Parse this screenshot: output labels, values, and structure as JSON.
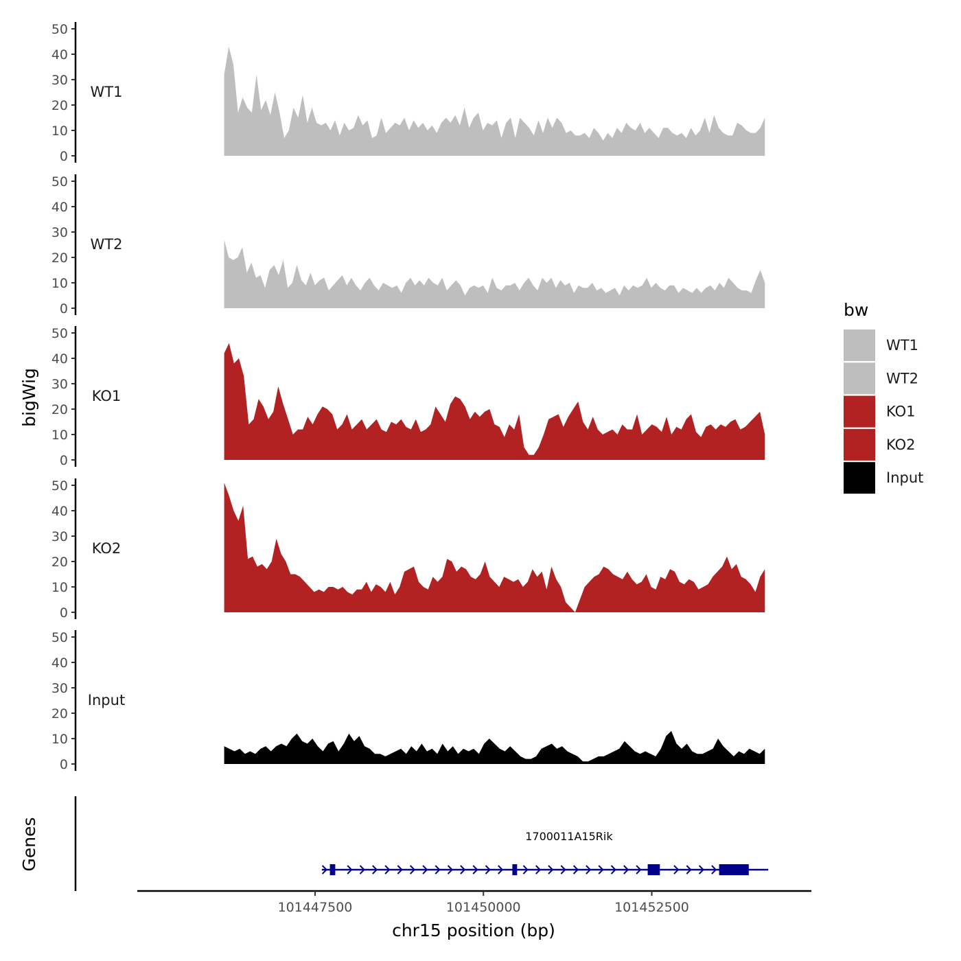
{
  "chart_data": {
    "type": "area",
    "y_axis_title": "bigWig",
    "x_axis_title": "chr15 position (bp)",
    "x_range": [
      101444860,
      101454870
    ],
    "x_ticks": [
      101447500,
      101450000,
      101452500
    ],
    "x_tick_labels": [
      "101447500",
      "101450000",
      "101452500"
    ],
    "y_range": [
      0,
      52
    ],
    "y_ticks": [
      0,
      10,
      20,
      30,
      40,
      50
    ],
    "y_tick_labels": [
      "0",
      "10",
      "20",
      "30",
      "40",
      "50"
    ],
    "data_start": 101446150,
    "data_end": 101454180,
    "tracks": [
      {
        "name": "WT1",
        "color": "#bebebe",
        "values": [
          32,
          43,
          36,
          17,
          23,
          19,
          17,
          32,
          18,
          22,
          16,
          25,
          17,
          7,
          10,
          19,
          15,
          24,
          13,
          19,
          13,
          12,
          13,
          10,
          14,
          8,
          13,
          10,
          11,
          16,
          12,
          14,
          7,
          8,
          15,
          9,
          11,
          13,
          12,
          15,
          10,
          14,
          11,
          13,
          10,
          12,
          9,
          13,
          15,
          13,
          16,
          12,
          19,
          11,
          15,
          17,
          10,
          13,
          12,
          14,
          7,
          13,
          15,
          7,
          15,
          13,
          11,
          8,
          14,
          9,
          15,
          11,
          15,
          13,
          9,
          10,
          8,
          8,
          9,
          7,
          11,
          9,
          6,
          9,
          7,
          11,
          9,
          13,
          11,
          10,
          13,
          9,
          11,
          9,
          7,
          11,
          11,
          9,
          8,
          9,
          7,
          11,
          8,
          10,
          15,
          9,
          16,
          11,
          9,
          8,
          8,
          13,
          12,
          10,
          9,
          9,
          11,
          15
        ]
      },
      {
        "name": "WT2",
        "color": "#bebebe",
        "values": [
          27,
          20,
          19,
          20,
          24,
          14,
          18,
          12,
          13,
          8,
          15,
          17,
          13,
          19,
          8,
          10,
          17,
          11,
          9,
          14,
          9,
          11,
          12,
          7,
          9,
          11,
          13,
          9,
          12,
          9,
          7,
          10,
          12,
          9,
          7,
          10,
          9,
          8,
          9,
          6,
          10,
          12,
          9,
          11,
          9,
          12,
          10,
          9,
          12,
          7,
          9,
          11,
          9,
          5,
          8,
          9,
          8,
          9,
          6,
          12,
          8,
          7,
          9,
          9,
          10,
          7,
          10,
          12,
          9,
          7,
          12,
          10,
          12,
          8,
          11,
          9,
          10,
          6,
          9,
          8,
          8,
          10,
          7,
          8,
          6,
          7,
          8,
          5,
          9,
          7,
          9,
          8,
          9,
          12,
          8,
          10,
          8,
          7,
          9,
          9,
          6,
          8,
          7,
          6,
          8,
          6,
          8,
          9,
          7,
          10,
          8,
          12,
          10,
          8,
          7,
          7,
          6,
          11,
          15,
          10
        ]
      },
      {
        "name": "KO1",
        "color": "#b22222",
        "values": [
          42,
          46,
          38,
          40,
          33,
          14,
          16,
          24,
          21,
          16,
          19,
          29,
          22,
          16,
          10,
          12,
          12,
          17,
          14,
          18,
          21,
          20,
          18,
          12,
          14,
          18,
          12,
          14,
          16,
          12,
          14,
          16,
          12,
          11,
          15,
          14,
          16,
          13,
          12,
          16,
          11,
          12,
          14,
          21,
          18,
          15,
          22,
          25,
          24,
          21,
          16,
          19,
          17,
          19,
          20,
          14,
          13,
          9,
          14,
          12,
          18,
          5,
          2,
          2,
          5,
          10,
          16,
          17,
          18,
          13,
          17,
          20,
          23,
          15,
          12,
          17,
          12,
          10,
          11,
          12,
          10,
          14,
          12,
          12,
          18,
          10,
          12,
          14,
          13,
          11,
          17,
          10,
          13,
          12,
          16,
          18,
          11,
          9,
          13,
          14,
          12,
          14,
          13,
          15,
          16,
          12,
          13,
          15,
          17,
          19,
          10
        ]
      },
      {
        "name": "KO2",
        "color": "#b22222",
        "values": [
          51,
          46,
          40,
          36,
          42,
          21,
          22,
          18,
          19,
          17,
          20,
          29,
          23,
          20,
          15,
          15,
          14,
          12,
          10,
          8,
          9,
          8,
          10,
          10,
          9,
          10,
          8,
          7,
          9,
          9,
          12,
          8,
          11,
          10,
          8,
          12,
          7,
          10,
          16,
          17,
          18,
          12,
          10,
          9,
          14,
          12,
          14,
          21,
          20,
          16,
          18,
          17,
          14,
          13,
          15,
          20,
          14,
          12,
          10,
          14,
          13,
          12,
          13,
          10,
          12,
          17,
          14,
          16,
          9,
          18,
          13,
          10,
          4,
          2,
          0,
          5,
          10,
          12,
          14,
          15,
          18,
          17,
          15,
          14,
          13,
          16,
          13,
          11,
          12,
          15,
          10,
          9,
          14,
          13,
          17,
          16,
          12,
          11,
          13,
          12,
          9,
          10,
          11,
          14,
          16,
          18,
          22,
          17,
          19,
          14,
          13,
          11,
          8,
          14,
          17
        ]
      },
      {
        "name": "Input",
        "color": "#000000",
        "values": [
          7,
          6,
          5,
          6,
          4,
          5,
          4,
          6,
          7,
          5,
          7,
          8,
          7,
          10,
          12,
          9,
          8,
          10,
          7,
          5,
          8,
          9,
          5,
          8,
          12,
          9,
          11,
          7,
          6,
          4,
          4,
          3,
          4,
          5,
          6,
          4,
          7,
          5,
          8,
          5,
          6,
          4,
          8,
          5,
          7,
          4,
          6,
          5,
          6,
          4,
          8,
          10,
          8,
          6,
          5,
          7,
          5,
          3,
          2,
          2,
          3,
          6,
          7,
          8,
          6,
          7,
          5,
          4,
          3,
          1,
          1,
          2,
          3,
          3,
          4,
          5,
          6,
          9,
          7,
          5,
          4,
          5,
          4,
          3,
          6,
          11,
          13,
          8,
          6,
          8,
          5,
          4,
          4,
          5,
          6,
          10,
          7,
          5,
          3,
          5,
          4,
          6,
          5,
          4,
          6
        ]
      }
    ],
    "genes_track_title": "Genes",
    "gene": {
      "name": "1700011A15Rik",
      "color": "#00008b",
      "strand": "+",
      "start": 101447700,
      "end": 101454230,
      "exons": [
        [
          101447720,
          101447800
        ],
        [
          101450430,
          101450500
        ],
        [
          101452440,
          101452620
        ],
        [
          101453500,
          101453940
        ]
      ]
    },
    "legend": {
      "title": "bw",
      "entries": [
        {
          "label": "WT1",
          "color": "#bebebe"
        },
        {
          "label": "WT2",
          "color": "#bebebe"
        },
        {
          "label": "KO1",
          "color": "#b22222"
        },
        {
          "label": "KO2",
          "color": "#b22222"
        },
        {
          "label": "Input",
          "color": "#000000"
        }
      ]
    }
  }
}
